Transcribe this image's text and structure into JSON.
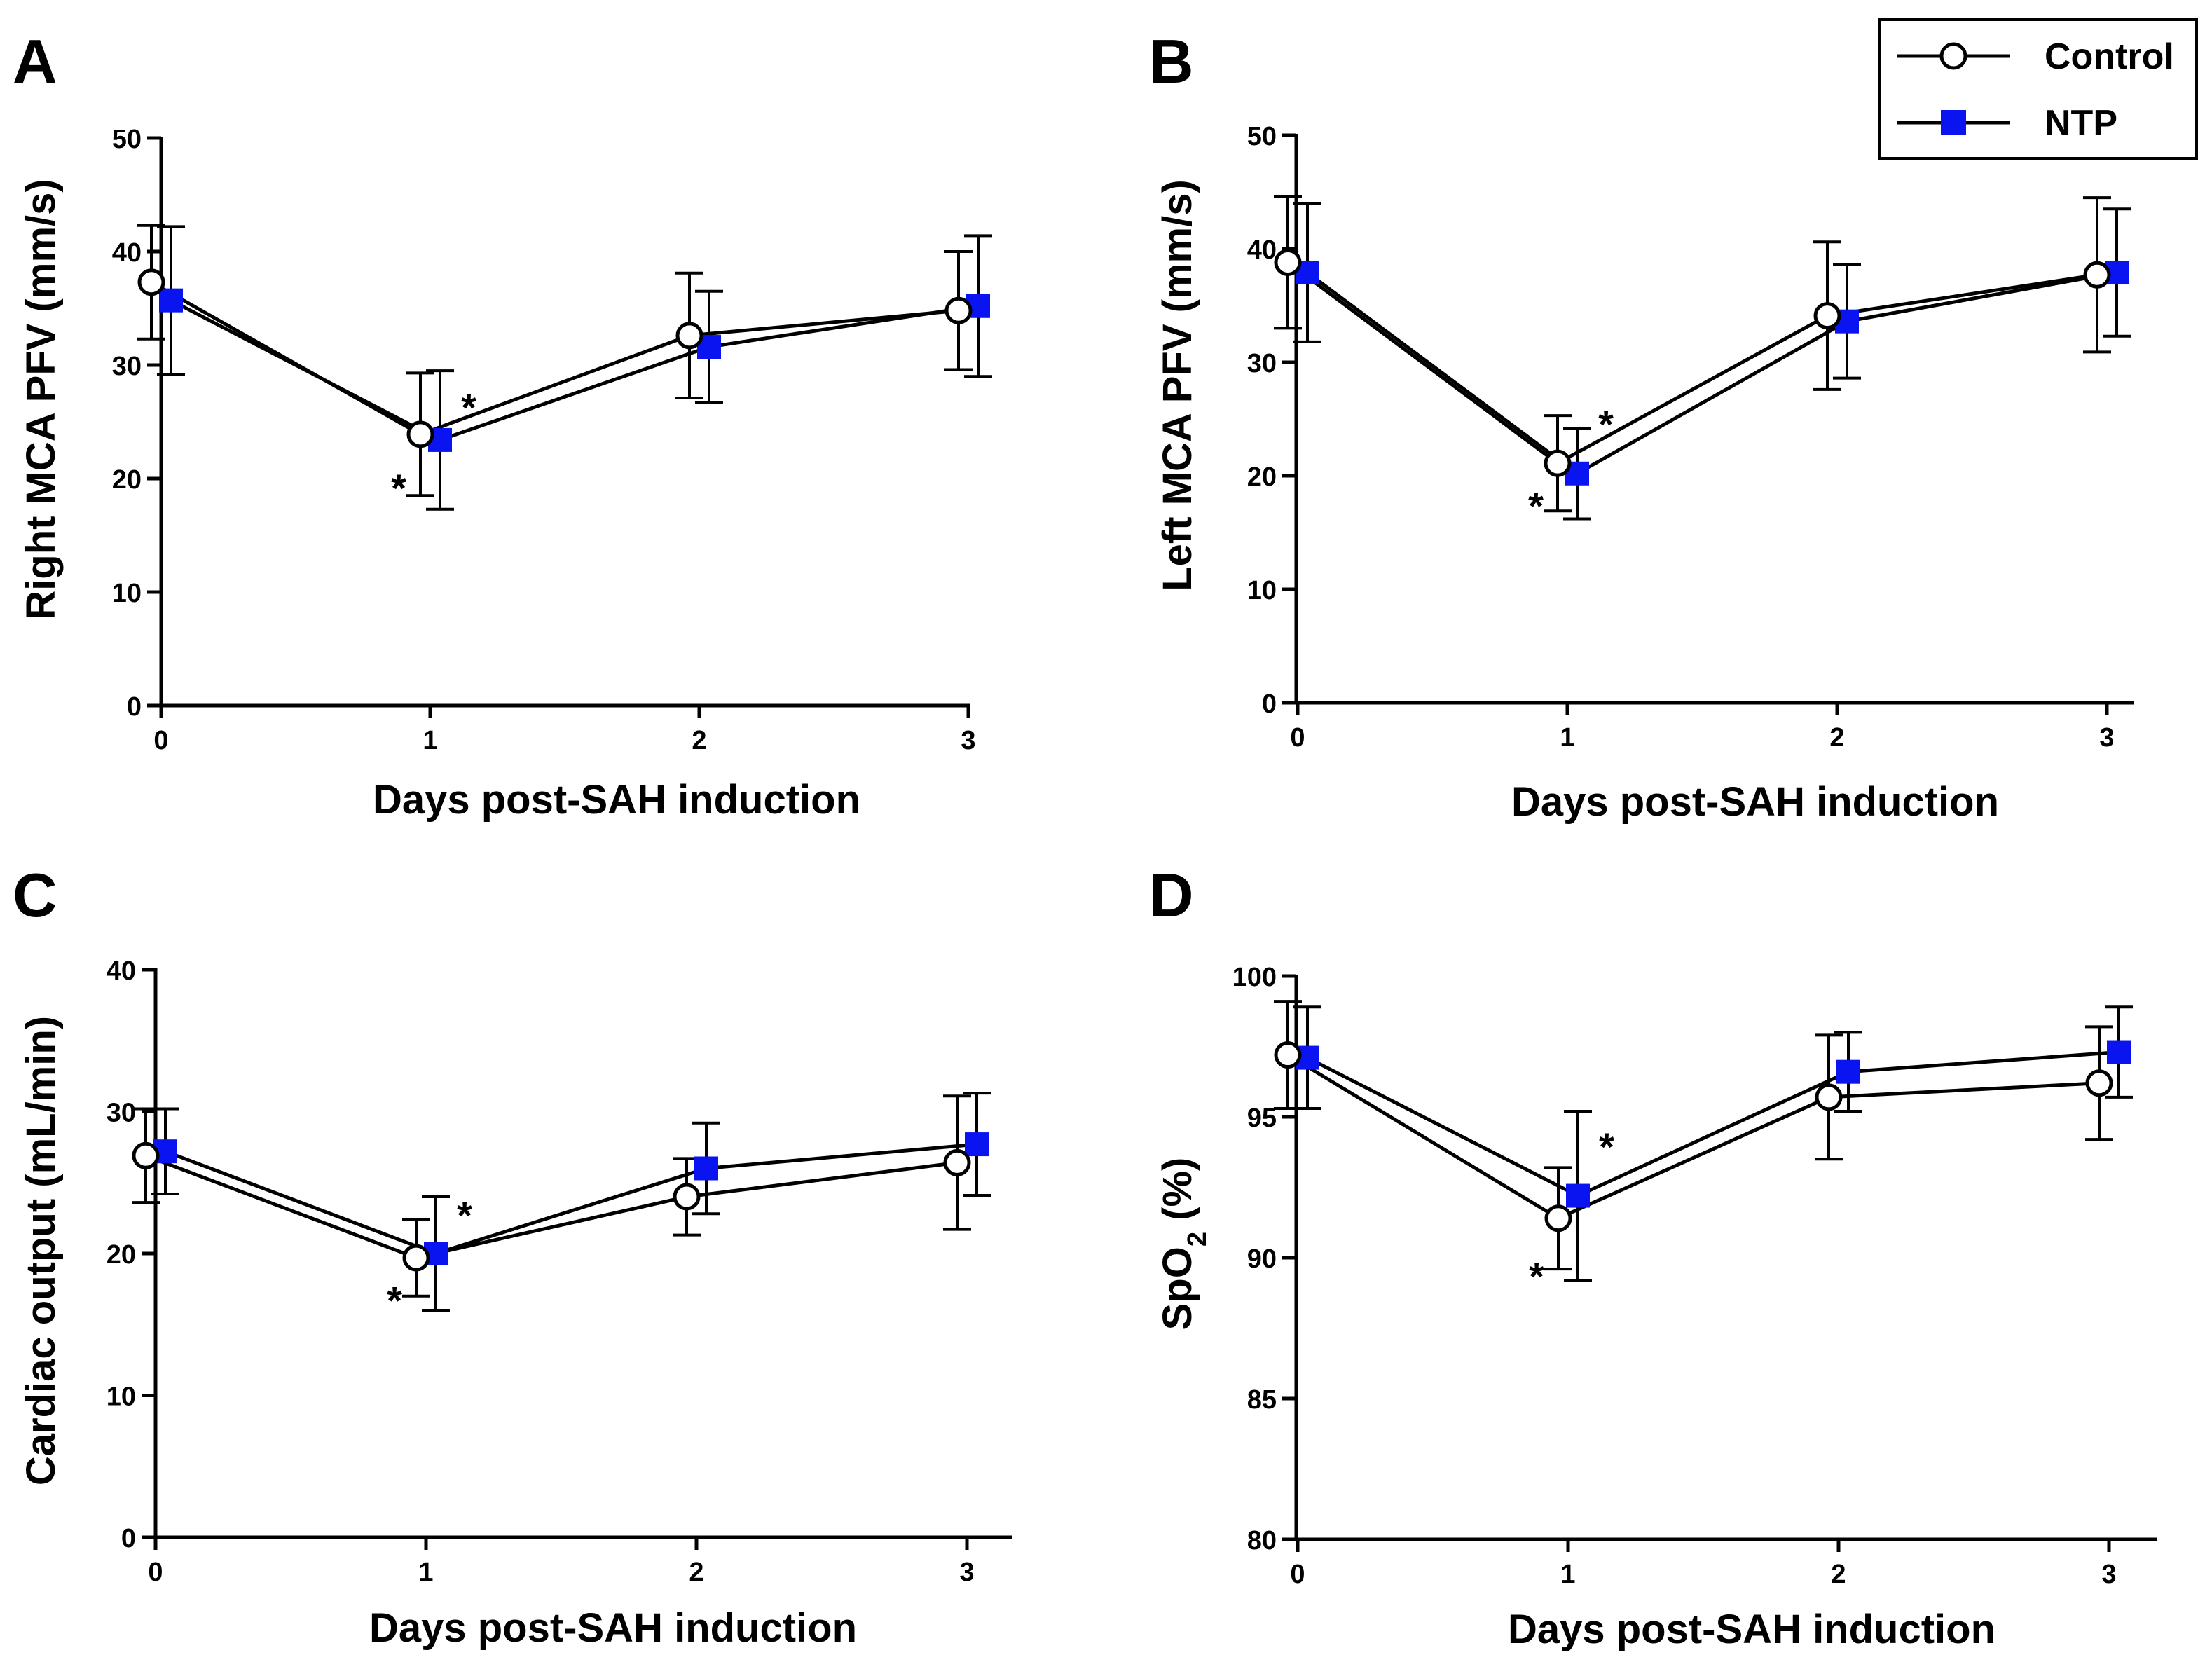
{
  "chart_data": [
    {
      "type": "line",
      "panel": "A",
      "title": "",
      "xlabel": "Days post-SAH induction",
      "ylabel": "Right MCA PFV (mm/s)",
      "ylabel_sub": "",
      "ylabel_suffix": "",
      "x": [
        0,
        1,
        2,
        3
      ],
      "xlim": [
        0,
        3
      ],
      "ylim": [
        0,
        50
      ],
      "yticks": [
        0,
        10,
        20,
        30,
        40,
        50
      ],
      "series": [
        {
          "name": "Control",
          "values": [
            37.3,
            23.9,
            32.6,
            34.8
          ],
          "errors": [
            5.0,
            5.4,
            5.5,
            5.2
          ]
        },
        {
          "name": "NTP",
          "values": [
            35.7,
            23.4,
            31.6,
            35.2
          ],
          "errors": [
            6.5,
            6.1,
            4.9,
            6.2
          ]
        }
      ],
      "annotations": [
        {
          "text": "*",
          "x": 1,
          "value": 19.8,
          "series": "Control"
        },
        {
          "text": "*",
          "x": 1,
          "value": 26.9,
          "series": "NTP"
        }
      ]
    },
    {
      "type": "line",
      "panel": "B",
      "title": "",
      "xlabel": "Days post-SAH induction",
      "ylabel": "Left MCA PFV (mm/s)",
      "ylabel_sub": "",
      "ylabel_suffix": "",
      "x": [
        0,
        1,
        2,
        3
      ],
      "xlim": [
        0,
        3
      ],
      "ylim": [
        0,
        50
      ],
      "yticks": [
        0,
        10,
        20,
        30,
        40,
        50
      ],
      "series": [
        {
          "name": "Control",
          "values": [
            38.8,
            21.1,
            34.1,
            37.7
          ],
          "errors": [
            5.8,
            4.2,
            6.5,
            6.8
          ]
        },
        {
          "name": "NTP",
          "values": [
            37.9,
            20.2,
            33.6,
            37.9
          ],
          "errors": [
            6.1,
            4.0,
            5.0,
            5.6
          ]
        }
      ],
      "annotations": [
        {
          "text": "*",
          "x": 1,
          "value": 18.0,
          "series": "Control"
        },
        {
          "text": "*",
          "x": 1,
          "value": 25.2,
          "series": "NTP"
        }
      ]
    },
    {
      "type": "line",
      "panel": "C",
      "title": "",
      "xlabel": "Days post-SAH induction",
      "ylabel": "Cardiac output (mL/min)",
      "ylabel_sub": "",
      "ylabel_suffix": "",
      "x": [
        0,
        1,
        2,
        3
      ],
      "xlim": [
        0,
        3
      ],
      "ylim": [
        0,
        40
      ],
      "yticks": [
        0,
        10,
        20,
        30,
        40
      ],
      "series": [
        {
          "name": "Control",
          "values": [
            26.9,
            19.7,
            24.0,
            26.4
          ],
          "errors": [
            3.3,
            2.7,
            2.7,
            4.7
          ]
        },
        {
          "name": "NTP",
          "values": [
            27.2,
            20.0,
            26.0,
            27.7
          ],
          "errors": [
            3.0,
            4.0,
            3.2,
            3.6
          ]
        }
      ],
      "annotations": [
        {
          "text": "*",
          "x": 1,
          "value": 17.2,
          "series": "Control"
        },
        {
          "text": "*",
          "x": 1,
          "value": 23.2,
          "series": "NTP"
        }
      ]
    },
    {
      "type": "line",
      "panel": "D",
      "title": "",
      "xlabel": "Days post-SAH induction",
      "ylabel": "SpO",
      "ylabel_sub": "2",
      "ylabel_suffix": " (%)",
      "x": [
        0,
        1,
        2,
        3
      ],
      "xlim": [
        0,
        3
      ],
      "ylim": [
        80,
        100
      ],
      "yticks": [
        80,
        85,
        90,
        95,
        100
      ],
      "series": [
        {
          "name": "Control",
          "values": [
            97.2,
            91.4,
            95.7,
            96.2
          ],
          "errors": [
            1.9,
            1.8,
            2.2,
            2.0
          ]
        },
        {
          "name": "NTP",
          "values": [
            97.1,
            92.2,
            96.6,
            97.3
          ],
          "errors": [
            1.8,
            3.0,
            1.4,
            1.6
          ]
        }
      ],
      "annotations": [
        {
          "text": "*",
          "x": 1,
          "value": 89.6,
          "series": "Control"
        },
        {
          "text": "*",
          "x": 1,
          "value": 94.2,
          "series": "NTP"
        }
      ]
    }
  ],
  "legend": {
    "items": [
      {
        "name": "Control",
        "marker": "open-circle"
      },
      {
        "name": "NTP",
        "marker": "filled-square"
      }
    ],
    "placement": "top-right"
  },
  "colors": {
    "control_fill": "#ffffff",
    "ntp_fill": "#0a14f0",
    "line": "#000000"
  }
}
